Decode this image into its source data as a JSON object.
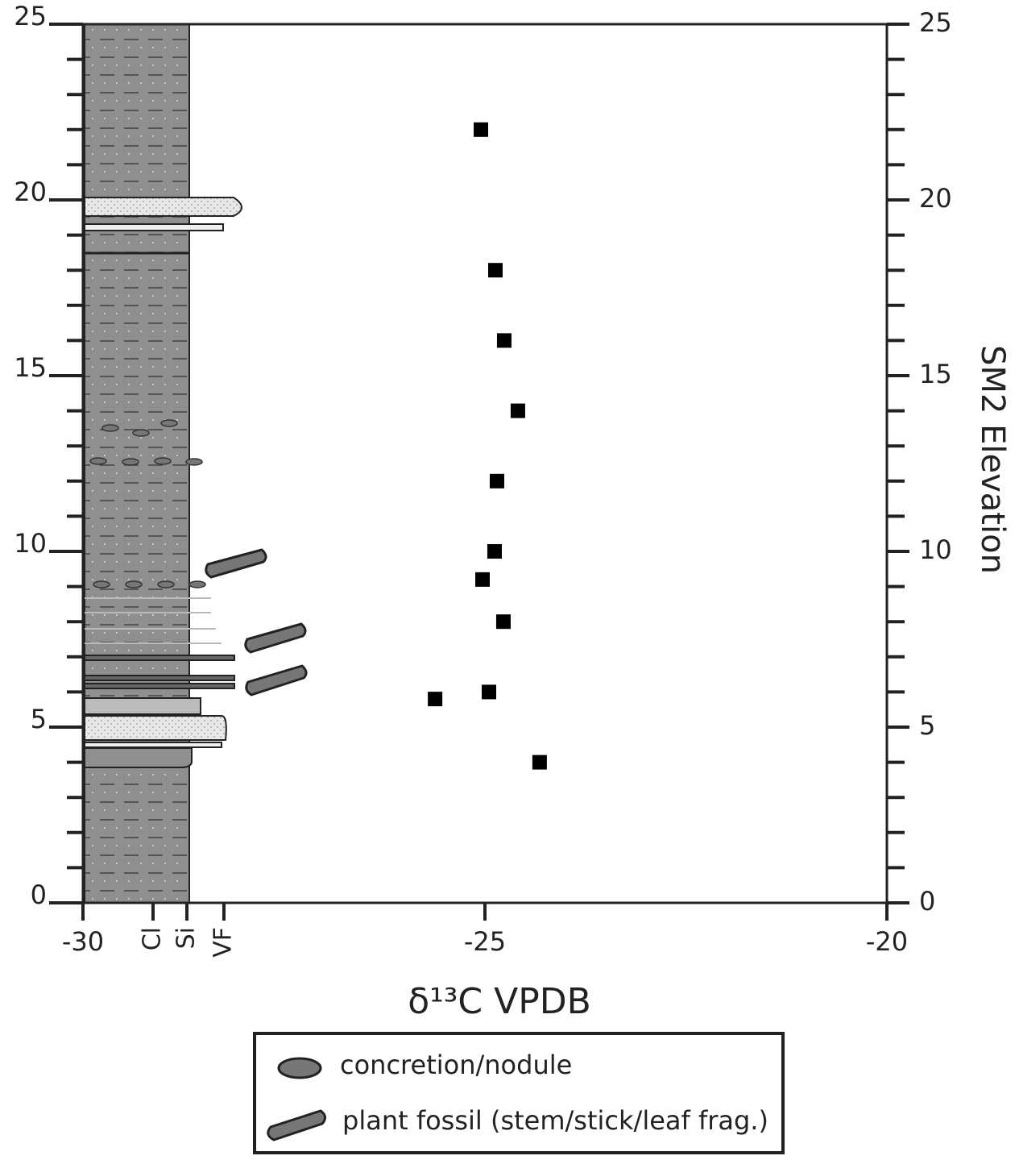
{
  "chart_data": {
    "type": "scatter",
    "x": [
      -25.05,
      -24.87,
      -24.76,
      -24.59,
      -24.85,
      -24.88,
      -25.03,
      -24.77,
      -24.95,
      -25.62,
      -24.32
    ],
    "values": [
      22,
      18,
      16,
      14,
      12,
      10,
      9.2,
      8,
      6,
      5.8,
      4
    ],
    "color": "#000000",
    "xlim": [
      -30,
      -20
    ],
    "xticks": [
      -30,
      -25,
      -20
    ],
    "ylim": [
      0,
      25
    ],
    "yticks": [
      0,
      5,
      10,
      15,
      20,
      25
    ],
    "yticks_minor": [
      0,
      1,
      2,
      3,
      4,
      5,
      6,
      7,
      8,
      9,
      10,
      11,
      12,
      13,
      14,
      15,
      16,
      17,
      18,
      19,
      20,
      21,
      22,
      23,
      24,
      25
    ],
    "y2lim": [
      0,
      25
    ],
    "y2ticks": [
      0,
      5,
      10,
      15,
      20,
      25
    ],
    "xlabel": "δ¹³C VPDB",
    "y2label": "SM2 Elevation",
    "column_labels": [
      "Cl",
      "Si",
      "VF"
    ],
    "legend_items": [
      "concretion/nodule",
      "plant fossil (stem/stick/leaf frag.)"
    ]
  }
}
